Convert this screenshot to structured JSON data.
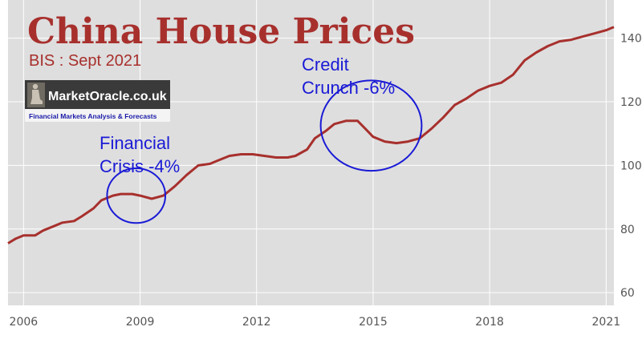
{
  "chart_data": {
    "type": "line",
    "title": "China House Prices",
    "subtitle": "BIS : Sept 2021",
    "xlabel": "",
    "ylabel": "",
    "xlim": [
      2005.6,
      2021.2
    ],
    "ylim": [
      56,
      152
    ],
    "x_ticks": [
      "2006",
      "2009",
      "2012",
      "2015",
      "2018",
      "2021"
    ],
    "y_ticks": [
      "60",
      "80",
      "100",
      "120",
      "140"
    ],
    "grid": true,
    "y_axis_side": "right",
    "background": "#dedede",
    "line_color": "#a7302d",
    "series": [
      {
        "x": [
          2005.6,
          2005.8,
          2006.0,
          2006.3,
          2006.5,
          2006.8,
          2007.0,
          2007.3,
          2007.5,
          2007.8,
          2008.0,
          2008.3,
          2008.5,
          2008.8,
          2009.0,
          2009.3,
          2009.6,
          2009.9,
          2010.2,
          2010.5,
          2010.8,
          2011.0,
          2011.3,
          2011.6,
          2011.9,
          2012.2,
          2012.5,
          2012.8,
          2013.0,
          2013.3,
          2013.5,
          2013.8,
          2014.0,
          2014.3,
          2014.6,
          2014.8,
          2015.0,
          2015.3,
          2015.6,
          2015.9,
          2016.2,
          2016.5,
          2016.8,
          2017.1,
          2017.4,
          2017.7,
          2018.0,
          2018.3,
          2018.6,
          2018.9,
          2019.2,
          2019.5,
          2019.8,
          2020.1,
          2020.4,
          2020.7,
          2021.0,
          2021.2
        ],
        "values": [
          75.5,
          77.0,
          78.0,
          78.0,
          79.5,
          81.0,
          82.0,
          82.5,
          84.0,
          86.5,
          89.0,
          90.5,
          91.0,
          91.0,
          90.5,
          89.5,
          90.5,
          93.5,
          97.0,
          100.0,
          100.5,
          101.5,
          103.0,
          103.5,
          103.5,
          103.0,
          102.5,
          102.5,
          103.0,
          105.0,
          108.5,
          111.0,
          113.0,
          114.0,
          114.0,
          111.5,
          109.0,
          107.5,
          107.0,
          107.5,
          108.5,
          111.5,
          115.0,
          119.0,
          121.0,
          123.5,
          125.0,
          126.0,
          128.5,
          133.0,
          135.5,
          137.5,
          139.0,
          139.5,
          140.5,
          141.5,
          142.5,
          143.5
        ]
      }
    ],
    "annotations": [
      {
        "lines": [
          "Financial",
          "Crisis -4%"
        ],
        "circle_center": [
          2008.9,
          90.5
        ],
        "circle_radius_x": 0.75,
        "circle_radius_y": 8.6
      },
      {
        "lines": [
          "Credit",
          "Crunch -6%"
        ],
        "circle_center": [
          2014.95,
          112.5
        ],
        "circle_radius_x": 1.3,
        "circle_radius_y": 14.2
      }
    ],
    "annotation_color": "#1a1ad6"
  },
  "logo": {
    "name": "MarketOracle.co.uk",
    "tagline": "Financial Markets Analysis & Forecasts"
  }
}
